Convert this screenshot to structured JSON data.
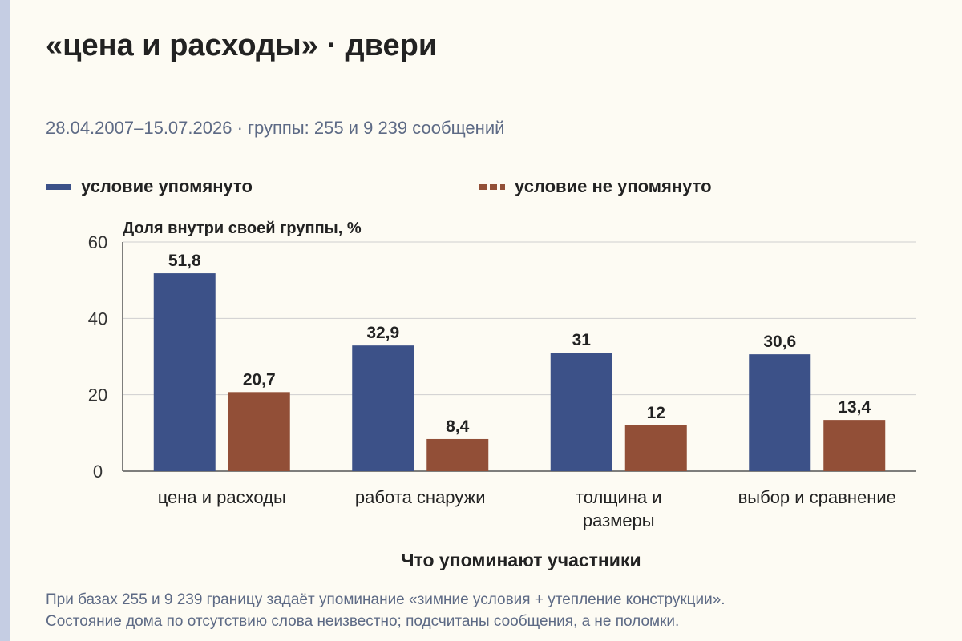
{
  "header": {
    "title": "«цена и расходы» · двери",
    "subtitle": "28.04.2007–15.07.2026 · группы: 255 и 9 239 сообщений"
  },
  "legend": [
    {
      "label": "условие упомянуто",
      "color": "#3c5188"
    },
    {
      "label": "условие не упомянуто",
      "color": "#924f37"
    }
  ],
  "chart_data": {
    "type": "bar",
    "title": "«цена и расходы» · двери",
    "xlabel": "Что упоминают участники",
    "ylabel": "Доля внутри своей группы, %",
    "ylim": [
      0,
      60
    ],
    "yticks": [
      0,
      20,
      40,
      60
    ],
    "grid": true,
    "legend_position": "top",
    "categories": [
      [
        "цена и расходы"
      ],
      [
        "работа снаружи"
      ],
      [
        "толщина и",
        "размеры"
      ],
      [
        "выбор и сравнение"
      ]
    ],
    "series": [
      {
        "name": "условие упомянуто",
        "color": "#3c5188",
        "values": [
          51.8,
          32.9,
          31,
          30.6
        ],
        "labels": [
          "51,8",
          "32,9",
          "31",
          "30,6"
        ]
      },
      {
        "name": "условие не упомянуто",
        "color": "#924f37",
        "values": [
          20.7,
          8.4,
          12,
          13.4
        ],
        "labels": [
          "20,7",
          "8,4",
          "12",
          "13,4"
        ]
      }
    ]
  },
  "footnote": {
    "line1": "При базах 255 и 9 239 границу задаёт упоминание «зимние условия + утепление конструкции».",
    "line2": "Состояние дома по отсутствию слова неизвестно; подсчитаны сообщения, а не поломки."
  }
}
